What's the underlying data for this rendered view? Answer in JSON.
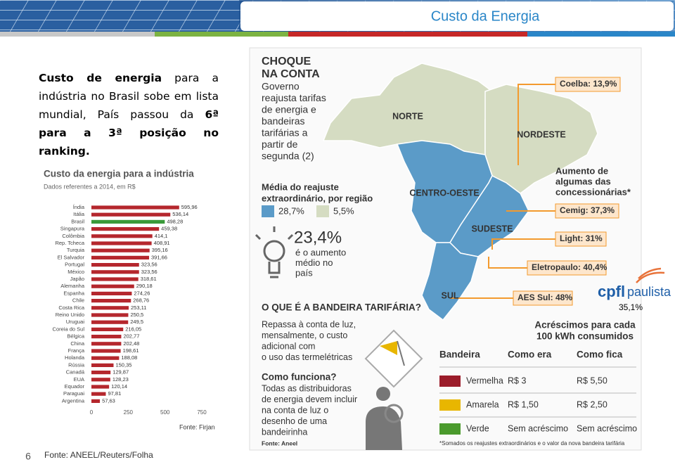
{
  "header": {
    "title": "Custo da Energia"
  },
  "text": {
    "parts": [
      {
        "text": "Custo de energia",
        "bold": true
      },
      {
        "text": " para a indústria no Brasil sobe em lista mundial, País passou da ",
        "bold": false
      },
      {
        "text": "6ª para a 3ª posição no ranking.",
        "bold": true
      }
    ]
  },
  "chart_data": {
    "type": "hbar",
    "title": "Custo da energia para a indústria",
    "subtitle": "Dados referentes a 2014, em R$",
    "source": "Fonte: Firjan",
    "categories": [
      "Índia",
      "Itália",
      "Brasil",
      "Singapura",
      "Colômbia",
      "Rep. Tcheca",
      "Turquia",
      "El Salvador",
      "Portugal",
      "México",
      "Japão",
      "Alemanha",
      "Espanha",
      "Chile",
      "Costa Rica",
      "Reino Unido",
      "Uruguai",
      "Coreia do Sul",
      "Bélgica",
      "China",
      "França",
      "Holanda",
      "Rússia",
      "Canadá",
      "EUA",
      "Equador",
      "Paraguai",
      "Argentina"
    ],
    "values": [
      595.96,
      536.14,
      498.28,
      459.38,
      414.1,
      408.91,
      395.16,
      391.66,
      323.56,
      323.56,
      318.61,
      290.18,
      274.26,
      268.76,
      253.11,
      250.5,
      249.5,
      216.05,
      202.77,
      202.48,
      198.61,
      188.08,
      150.35,
      129.87,
      128.23,
      120.14,
      97.81,
      57.63
    ],
    "value_labels": [
      "595,96",
      "536,14",
      "498,28",
      "459,38",
      "414,1",
      "408,91",
      "395,16",
      "391,66",
      "323,56",
      "323,56",
      "318,61",
      "290,18",
      "274,26",
      "268,76",
      "253,11",
      "250,5",
      "249,5",
      "216,05",
      "202,77",
      "202,48",
      "198,61",
      "188,08",
      "150,35",
      "129,87",
      "128,23",
      "120,14",
      "97,81",
      "57,63"
    ],
    "colors": [
      "#b5272d",
      "#b5272d",
      "#3a9a3a",
      "#b5272d",
      "#b5272d",
      "#b5272d",
      "#b5272d",
      "#b5272d",
      "#b5272d",
      "#b5272d",
      "#b5272d",
      "#b5272d",
      "#b5272d",
      "#b5272d",
      "#b5272d",
      "#b5272d",
      "#b5272d",
      "#b5272d",
      "#b5272d",
      "#b5272d",
      "#b5272d",
      "#b5272d",
      "#b5272d",
      "#b5272d",
      "#b5272d",
      "#b5272d",
      "#b5272d",
      "#b5272d"
    ],
    "xlim": [
      0,
      800
    ],
    "xticks": [
      0,
      250,
      500,
      750
    ],
    "grid": false
  },
  "infographic": {
    "heading": [
      "CHOQUE",
      "NA CONTA"
    ],
    "subheading": [
      "Governo",
      "reajusta tarifas",
      "de energia e",
      "bandeiras",
      "tarifárias a",
      "partir de",
      "segunda (2)"
    ],
    "regions": [
      "NORTE",
      "NORDESTE",
      "CENTRO-OESTE",
      "SUDESTE",
      "SUL"
    ],
    "legend_title": [
      "Média do reajuste",
      "extraordinário, por região"
    ],
    "legend": [
      {
        "label": "28,7%",
        "color": "#5b9bc8"
      },
      {
        "label": "5,5%",
        "color": "#d5dcc2"
      }
    ],
    "average": "23,4%",
    "average_text": [
      "é o aumento",
      "médio no",
      "país"
    ],
    "callouts": [
      "Coelba: 13,9%",
      "Cemig: 37,3%",
      "Light: 31%",
      "Eletropaulo: 40,4%",
      "AES Sul: 48%"
    ],
    "callout_note": [
      "Aumento de",
      "algumas das",
      "concessionárias*"
    ],
    "question": "O QUE É A BANDEIRA TARIFÁRIA?",
    "answer": [
      "Repassa à conta de luz,",
      "mensalmente, o custo",
      "adicional com",
      "o uso das termelétricas"
    ],
    "how_title": "Como funciona?",
    "how_text": [
      "Todas as distribuidoras",
      "de energia devem incluir",
      "na conta de luz o",
      "desenho de uma",
      "bandeirinha"
    ],
    "source": "Fonte: Aneel",
    "table": {
      "title": [
        "Acréscimos para cada",
        "100 kWh consumidos"
      ],
      "header": [
        "Bandeira",
        "Como era",
        "Como fica"
      ],
      "rows": [
        {
          "color": "#9b1c2a",
          "cells": [
            "Vermelha",
            "R$ 3",
            "R$ 5,50"
          ]
        },
        {
          "color": "#e8b600",
          "cells": [
            "Amarela",
            "R$ 1,50",
            "R$ 2,50"
          ]
        },
        {
          "color": "#4a9a2c",
          "cells": [
            "Verde",
            "Sem acréscimo",
            "Sem acréscimo"
          ]
        }
      ],
      "note": "*Somados os reajustes extraordinários e o valor da nova bandeira tarifária"
    }
  },
  "logo": {
    "text": [
      "cpfl",
      "paulista"
    ],
    "value": "35,1%"
  },
  "footer": {
    "page": "6",
    "source": "Fonte: ANEEL/Reuters/Folha"
  }
}
